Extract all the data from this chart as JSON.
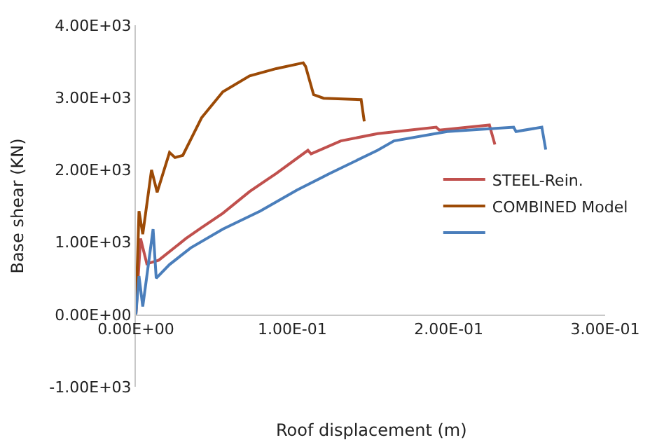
{
  "chart_data": {
    "type": "line",
    "xlabel": "Roof displacement (m)",
    "ylabel": "Base shear (KN)",
    "xlim": [
      0,
      0.3
    ],
    "xticks": [
      {
        "value": 0,
        "label": "0.00E+00"
      },
      {
        "value": 0.1,
        "label": "1.00E-01"
      },
      {
        "value": 0.2,
        "label": "2.00E-01"
      },
      {
        "value": 0.3,
        "label": "3.00E-01"
      }
    ],
    "ylim": [
      -1000,
      4000
    ],
    "yticks": [
      {
        "value": -1000,
        "label": "-1.00E+03"
      },
      {
        "value": 0,
        "label": "0.00E+00"
      },
      {
        "value": 1000,
        "label": "1.00E+03"
      },
      {
        "value": 2000,
        "label": "2.00E+03"
      },
      {
        "value": 3000,
        "label": "3.00E+03"
      },
      {
        "value": 4000,
        "label": "4.00E+03"
      }
    ],
    "legend": "right",
    "marker": "none",
    "line_style": "solid",
    "series": [
      {
        "name": "STEEL-Rein.",
        "color": "#c0504d",
        "x": [
          0,
          0.003,
          0.007,
          0.0146,
          0.032,
          0.042,
          0.0556,
          0.0727,
          0.0897,
          0.11,
          0.112,
          0.131,
          0.1545,
          0.192,
          0.194,
          0.226,
          0.2295
        ],
        "values": [
          0,
          1050,
          700,
          750,
          1050,
          1200,
          1400,
          1700,
          1950,
          2270,
          2220,
          2400,
          2500,
          2590,
          2550,
          2620,
          2350
        ]
      },
      {
        "name": "COMBINED Model",
        "color": "#9c4a06",
        "x": [
          0,
          0.002,
          0.0044,
          0.01,
          0.0136,
          0.0215,
          0.025,
          0.03,
          0.042,
          0.0556,
          0.0727,
          0.0897,
          0.107,
          0.1085,
          0.1136,
          0.12,
          0.144,
          0.146
        ],
        "values": [
          0,
          1430,
          1110,
          2000,
          1690,
          2240,
          2170,
          2200,
          2720,
          3080,
          3300,
          3400,
          3480,
          3430,
          3040,
          2990,
          2970,
          2670
        ]
      },
      {
        "color": "#4a7ebb",
        "x": [
          0,
          0.002,
          0.0044,
          0.007,
          0.011,
          0.013,
          0.0215,
          0.035,
          0.0556,
          0.0795,
          0.103,
          0.124,
          0.1545,
          0.165,
          0.199,
          0.2415,
          0.243,
          0.2595,
          0.262
        ],
        "values": [
          0,
          530,
          110,
          530,
          1180,
          500,
          690,
          920,
          1180,
          1430,
          1720,
          1950,
          2270,
          2400,
          2530,
          2590,
          2530,
          2590,
          2280
        ]
      }
    ]
  }
}
